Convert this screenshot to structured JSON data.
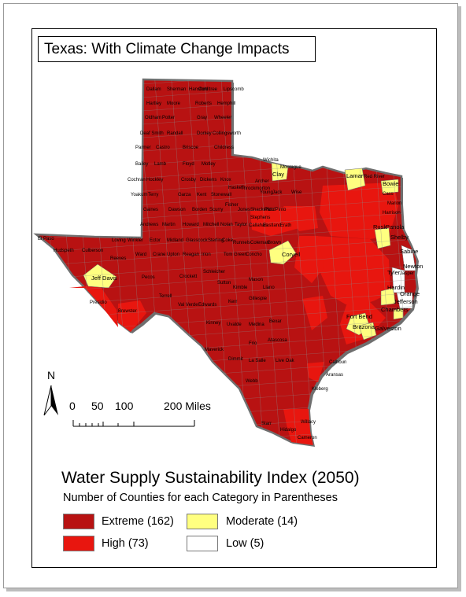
{
  "map": {
    "title": "Texas: With Climate Change Impacts",
    "colors": {
      "extreme": "#b81212",
      "high": "#e8160f",
      "moderate": "#ffff80",
      "low": "#ffffff",
      "outline": "#6f6f6f"
    },
    "labeled_counties": [
      "Dallam",
      "Sherman",
      "Hansford",
      "Ochiltree",
      "Lipscomb",
      "Hartley",
      "Moore",
      "Roberts",
      "Hemphill",
      "Oldham",
      "Potter",
      "Gray",
      "Wheeler",
      "Deaf Smith",
      "Randall",
      "Donley",
      "Collingsworth",
      "Parmer",
      "Castro",
      "Briscoe",
      "Childress",
      "Bailey",
      "Lamb",
      "Floyd",
      "Motley",
      "Wichita",
      "Montague",
      "Clay",
      "Lamar",
      "Red River",
      "Bowie",
      "Cochran",
      "Hockley",
      "Crosby",
      "Dickens",
      "Knox",
      "Archer",
      "Jack",
      "Wise",
      "Cass",
      "Yoakum",
      "Terry",
      "Garza",
      "Kent",
      "Stonewall",
      "Haskell",
      "Throckmorton",
      "Young",
      "Marion",
      "Gaines",
      "Dawson",
      "Borden",
      "Scurry",
      "Fisher",
      "Jones",
      "Shackelford",
      "Stephens",
      "Palo Pinto",
      "Harrison",
      "Andrews",
      "Martin",
      "Howard",
      "Mitchell",
      "Nolan",
      "Taylor",
      "Callahan",
      "Eastland",
      "Erath",
      "Rusk",
      "Panola",
      "El Paso",
      "Loving",
      "Winkler",
      "Ector",
      "Midland",
      "Glasscock",
      "Sterling",
      "Coke",
      "Runnels",
      "Coleman",
      "Brown",
      "Hudspeth",
      "Culberson",
      "Reeves",
      "Ward",
      "Crane",
      "Upton",
      "Reagan",
      "Irion",
      "Tom Green",
      "Concho",
      "Coryell",
      "Shelby",
      "Sabine",
      "Jeff Davis",
      "Pecos",
      "Crockett",
      "Schleicher",
      "Sutton",
      "Kimble",
      "Mason",
      "Llano",
      "Newton",
      "Presidio",
      "Brewster",
      "Terrell",
      "Val Verde",
      "Edwards",
      "Kerr",
      "Gillespie",
      "Tyler",
      "Jasper",
      "Hardin",
      "Orange",
      "Jefferson",
      "Chambers",
      "Galveston",
      "Fort Bend",
      "Brazoria",
      "Kinney",
      "Uvalde",
      "Medina",
      "Bexar",
      "Maverick",
      "Frio",
      "Atascosa",
      "Dimmit",
      "La Salle",
      "Live Oak",
      "Calhoun",
      "Aransas",
      "Webb",
      "Kleberg",
      "Starr",
      "Hidalgo",
      "Willacy",
      "Cameron"
    ]
  },
  "north_arrow": {
    "label": "N"
  },
  "scale_bar": {
    "ticks": [
      "0",
      "50",
      "100",
      "200 Miles"
    ]
  },
  "legend": {
    "title": "Water Supply Sustainability Index (2050)",
    "subtitle": "Number of Counties for each Category in Parentheses",
    "items": [
      {
        "label": "Extreme (162)",
        "color": "#b81212"
      },
      {
        "label": "Moderate (14)",
        "color": "#ffff80"
      },
      {
        "label": "High (73)",
        "color": "#e8160f"
      },
      {
        "label": "Low (5)",
        "color": "#ffffff"
      }
    ]
  }
}
